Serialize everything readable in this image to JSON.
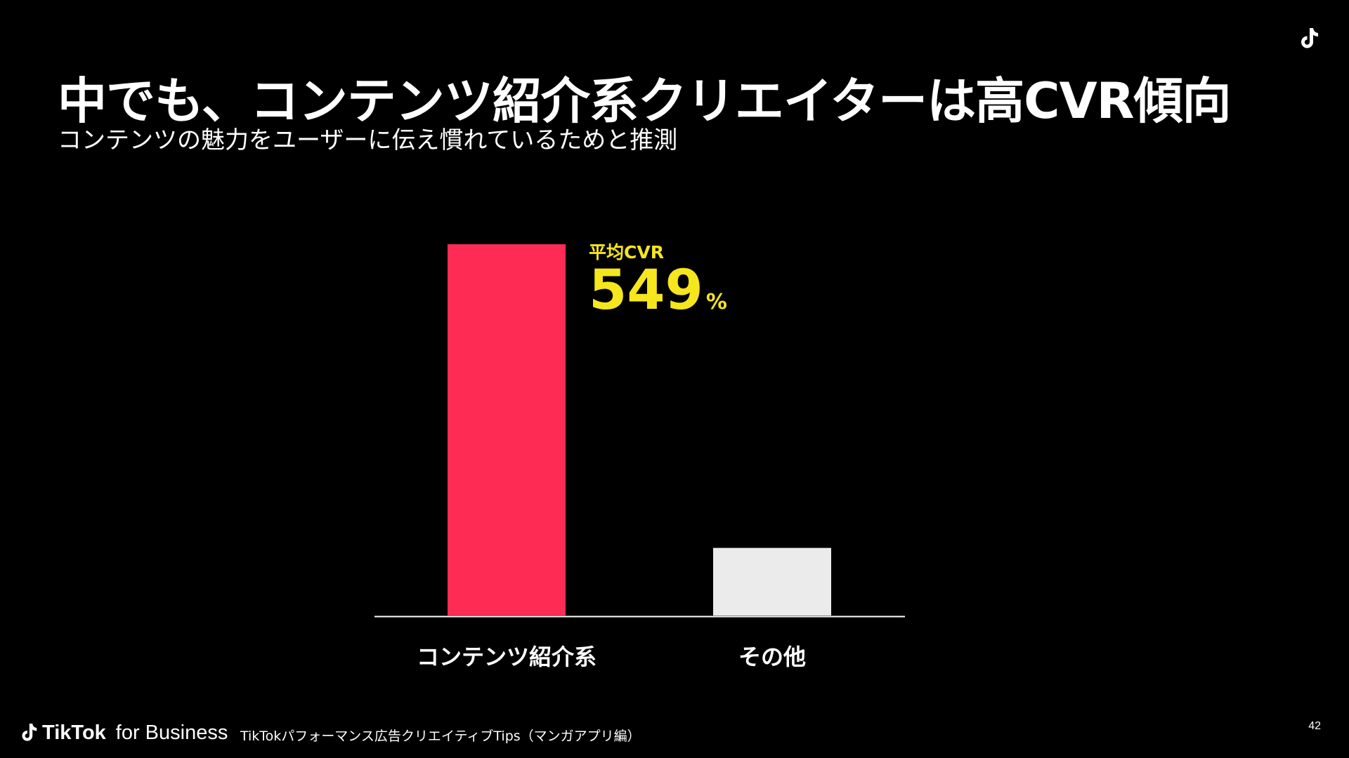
{
  "slide": {
    "title": "中でも、コンテンツ紹介系クリエイターは高CVR傾向",
    "subtitle": "コンテンツの魅力をユーザーに伝え慣れているためと推測"
  },
  "footer": {
    "brand_strong": "TikTok",
    "brand_light": "for Business",
    "deck_title": "TikTokパフォーマンス広告クリエイティブTips（マンガアプリ編）",
    "page_number": "42"
  },
  "chart_data": {
    "type": "bar",
    "categories": [
      "コンテンツ紹介系",
      "その他"
    ],
    "values": [
      549,
      100
    ],
    "ylim": [
      0,
      549
    ],
    "grid": false,
    "axis_y_visible": false,
    "colors": [
      "#FE2C55",
      "#EBEBEB"
    ],
    "annotation": {
      "label": "平均CVR",
      "value": "549",
      "unit": "%",
      "color": "#F5E61E",
      "target_category": "コンテンツ紹介系"
    }
  }
}
